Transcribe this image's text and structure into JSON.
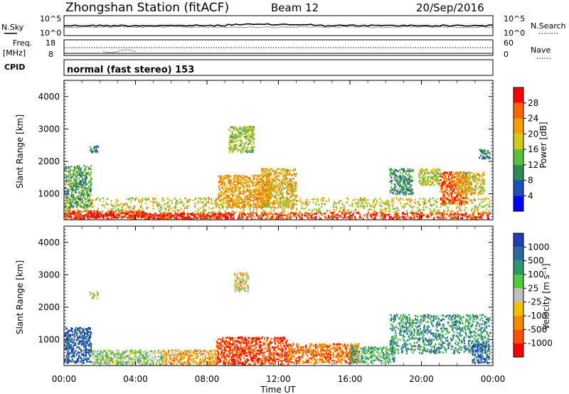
{
  "header": {
    "station": "Zhongshan Station (fitACF)",
    "beam": "Beam 12",
    "date": "20/Sep/2016"
  },
  "aux": {
    "nsky_label": "N.Sky",
    "nsky_ticks": [
      "10^5",
      "10^0"
    ],
    "nsearch_label": "N.Search",
    "nsearch_ticks": [
      "10^5",
      "10^0"
    ],
    "freq_label": "Freq.",
    "freq_unit": "[MHz]",
    "freq_ticks": [
      "18",
      "8"
    ],
    "nave_label": "Nave",
    "nave_ticks": [
      "60",
      "0"
    ],
    "cpid_label": "CPID",
    "cpid_value": "normal (fast stereo) 153"
  },
  "chart_data": [
    {
      "type": "heatmap",
      "name": "power",
      "ylabel": "Slant Range [km]",
      "yticks": [
        1000,
        2000,
        3000,
        4000
      ],
      "ylim": [
        200,
        4500
      ],
      "colorbar_label": "Power [dB]",
      "colorbar_ticks": [
        "4",
        "8",
        "12",
        "16",
        "20",
        "24",
        "28"
      ],
      "colors": [
        "#0000ff",
        "#1e4fb4",
        "#2a8a5a",
        "#5abf3c",
        "#d2c81e",
        "#f2a000",
        "#ff6400",
        "#ff0000"
      ],
      "regions": [
        {
          "t0": 0.0,
          "t1": 23.8,
          "r0": 250,
          "r1": 450,
          "level": 6.5
        },
        {
          "t0": 0.0,
          "t1": 4.5,
          "r0": 300,
          "r1": 500,
          "level": 7.2
        },
        {
          "t0": 4.5,
          "t1": 9.5,
          "r0": 250,
          "r1": 420,
          "level": 7.0
        },
        {
          "t0": 0.0,
          "t1": 23.8,
          "r0": 450,
          "r1": 900,
          "level": 4.2
        },
        {
          "t0": 0.0,
          "t1": 1.5,
          "r0": 600,
          "r1": 1900,
          "level": 2.5
        },
        {
          "t0": 1.4,
          "t1": 1.9,
          "r0": 2300,
          "r1": 2500,
          "level": 1.5
        },
        {
          "t0": 9.2,
          "t1": 10.6,
          "r0": 2300,
          "r1": 3100,
          "level": 3.5
        },
        {
          "t0": 8.6,
          "t1": 11.5,
          "r0": 600,
          "r1": 1600,
          "level": 5.0
        },
        {
          "t0": 11.0,
          "t1": 13.0,
          "r0": 600,
          "r1": 1800,
          "level": 4.5
        },
        {
          "t0": 18.2,
          "t1": 19.5,
          "r0": 1000,
          "r1": 1800,
          "level": 2.2
        },
        {
          "t0": 19.8,
          "t1": 21.0,
          "r0": 1300,
          "r1": 1800,
          "level": 4.0
        },
        {
          "t0": 21.0,
          "t1": 22.5,
          "r0": 700,
          "r1": 1700,
          "level": 6.0
        },
        {
          "t0": 22.0,
          "t1": 23.5,
          "r0": 1000,
          "r1": 1700,
          "level": 4.5
        },
        {
          "t0": 23.2,
          "t1": 23.8,
          "r0": 2100,
          "r1": 2400,
          "level": 2.0
        }
      ]
    },
    {
      "type": "heatmap",
      "name": "velocity",
      "ylabel": "Slant Range [km]",
      "yticks": [
        1000,
        2000,
        3000,
        4000
      ],
      "ylim": [
        200,
        4500
      ],
      "colorbar_label": "Velocity [m s⁻¹]",
      "colorbar_ticks": [
        "1000",
        "500",
        "100",
        "25",
        "-25",
        "-100",
        "-500",
        "-1000"
      ],
      "colors": [
        "#1e3fb4",
        "#2a6a9a",
        "#2a9a6a",
        "#55c83a",
        "#c0c0c0",
        "#f2c000",
        "#f28a00",
        "#ff5000",
        "#ff0000"
      ],
      "regions": [
        {
          "t0": 0.0,
          "t1": 1.5,
          "r0": 300,
          "r1": 1400,
          "level": 0.5
        },
        {
          "t0": 1.5,
          "t1": 5.5,
          "r0": 250,
          "r1": 700,
          "level": 3.5
        },
        {
          "t0": 5.5,
          "t1": 8.5,
          "r0": 250,
          "r1": 700,
          "level": 5.5
        },
        {
          "t0": 8.5,
          "t1": 12.5,
          "r0": 250,
          "r1": 1100,
          "level": 7.2
        },
        {
          "t0": 9.5,
          "t1": 10.3,
          "r0": 2500,
          "r1": 3100,
          "level": 4.5
        },
        {
          "t0": 12.5,
          "t1": 16.5,
          "r0": 300,
          "r1": 900,
          "level": 6.5
        },
        {
          "t0": 16.0,
          "t1": 18.5,
          "r0": 300,
          "r1": 800,
          "level": 2.5
        },
        {
          "t0": 18.2,
          "t1": 23.8,
          "r0": 600,
          "r1": 1800,
          "level": 1.8
        },
        {
          "t0": 22.8,
          "t1": 23.8,
          "r0": 300,
          "r1": 900,
          "level": 0.5
        },
        {
          "t0": 1.4,
          "t1": 1.9,
          "r0": 2300,
          "r1": 2500,
          "level": 4.0
        }
      ]
    }
  ],
  "xaxis": {
    "label": "Time UT",
    "ticks": [
      "00:00",
      "04:00",
      "08:00",
      "12:00",
      "16:00",
      "20:00",
      "00:00"
    ],
    "range": [
      0,
      24
    ]
  }
}
